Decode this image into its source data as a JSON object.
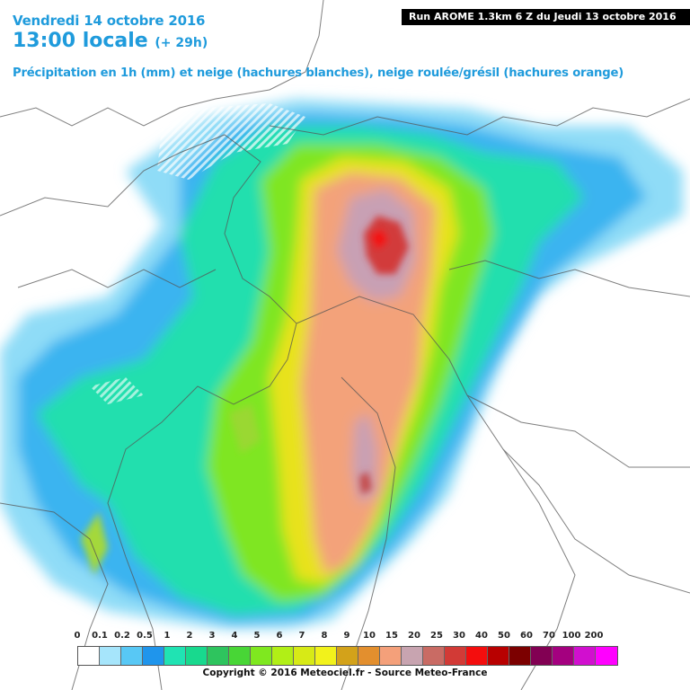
{
  "header": {
    "date_line": "Vendredi 14 octobre 2016",
    "time_line": "13:00 locale",
    "forecast_hour": "(+ 29h)",
    "subtitle": "Précipitation en 1h (mm) et neige (hachures blanches), neige roulée/grésil (hachures orange)",
    "run_info": "Run AROME 1.3km 6 Z du Jeudi 13 octobre 2016"
  },
  "legend": {
    "labels": [
      "0",
      "0.1",
      "0.2",
      "0.5",
      "1",
      "2",
      "3",
      "4",
      "5",
      "6",
      "7",
      "8",
      "9",
      "10",
      "15",
      "20",
      "25",
      "30",
      "40",
      "50",
      "60",
      "70",
      "100",
      "200"
    ],
    "colors": [
      "#ffffff",
      "#a6e5fb",
      "#58c8f5",
      "#1f95ec",
      "#20e3b3",
      "#18d98e",
      "#2ec45e",
      "#48d636",
      "#7fe81f",
      "#b1ef16",
      "#d7ea16",
      "#f2f21b",
      "#d3a21a",
      "#e38f2e",
      "#f4a07a",
      "#c8a4b0",
      "#c96b64",
      "#d23a36",
      "#f40d0d",
      "#b80000",
      "#7c0000",
      "#820053",
      "#a4007f",
      "#d10fcf",
      "#ff00ff"
    ]
  },
  "footer": {
    "copyright": "Copyright © 2016 Meteociel.fr - Source Meteo-France"
  }
}
